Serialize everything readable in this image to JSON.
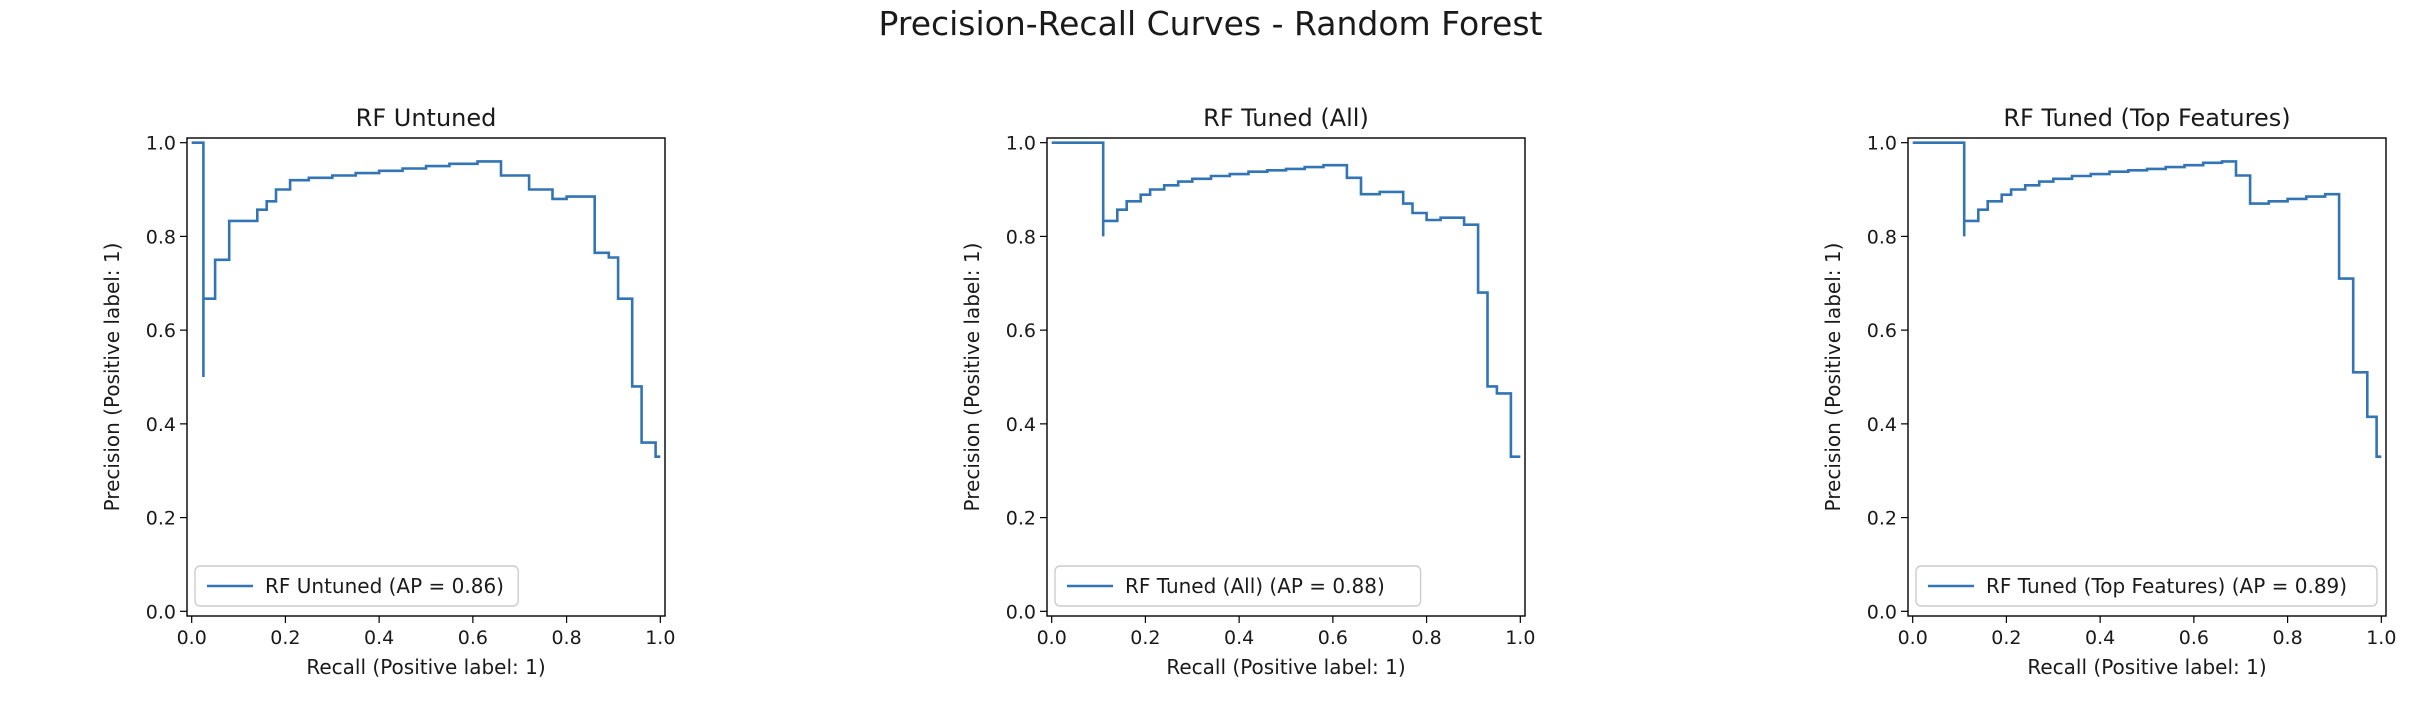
{
  "figure": {
    "title": "Precision-Recall Curves - Random Forest",
    "line_color": "#3274b4"
  },
  "chart_data": [
    {
      "type": "line",
      "step": "post",
      "title": "RF Untuned",
      "xlabel": "Recall (Positive label: 1)",
      "ylabel": "Precision (Positive label: 1)",
      "xlim": [
        0.0,
        1.0
      ],
      "ylim": [
        0.0,
        1.0
      ],
      "xticks": [
        "0.0",
        "0.2",
        "0.4",
        "0.6",
        "0.8",
        "1.0"
      ],
      "yticks": [
        "0.0",
        "0.2",
        "0.4",
        "0.6",
        "0.8",
        "1.0"
      ],
      "legend_position": "lower-left",
      "series": [
        {
          "name": "RF Untuned (AP = 0.86)",
          "x": [
            0.0,
            0.025,
            0.025,
            0.025,
            0.05,
            0.05,
            0.08,
            0.08,
            0.14,
            0.14,
            0.16,
            0.16,
            0.18,
            0.18,
            0.21,
            0.21,
            0.25,
            0.25,
            0.3,
            0.3,
            0.35,
            0.35,
            0.4,
            0.4,
            0.45,
            0.45,
            0.5,
            0.5,
            0.55,
            0.55,
            0.61,
            0.61,
            0.66,
            0.66,
            0.72,
            0.72,
            0.77,
            0.77,
            0.8,
            0.8,
            0.86,
            0.86,
            0.89,
            0.89,
            0.91,
            0.91,
            0.94,
            0.94,
            0.96,
            0.96,
            0.99,
            0.99,
            1.0
          ],
          "y": [
            1.0,
            1.0,
            0.5,
            0.667,
            0.667,
            0.75,
            0.75,
            0.833,
            0.833,
            0.857,
            0.857,
            0.875,
            0.875,
            0.9,
            0.9,
            0.92,
            0.92,
            0.925,
            0.925,
            0.93,
            0.93,
            0.935,
            0.935,
            0.94,
            0.94,
            0.945,
            0.945,
            0.95,
            0.95,
            0.955,
            0.955,
            0.96,
            0.96,
            0.93,
            0.93,
            0.9,
            0.9,
            0.88,
            0.88,
            0.885,
            0.885,
            0.765,
            0.765,
            0.755,
            0.755,
            0.667,
            0.667,
            0.48,
            0.48,
            0.36,
            0.36,
            0.33,
            0.33
          ]
        }
      ]
    },
    {
      "type": "line",
      "step": "post",
      "title": "RF Tuned (All)",
      "xlabel": "Recall (Positive label: 1)",
      "ylabel": "Precision (Positive label: 1)",
      "xlim": [
        0.0,
        1.0
      ],
      "ylim": [
        0.0,
        1.0
      ],
      "xticks": [
        "0.0",
        "0.2",
        "0.4",
        "0.6",
        "0.8",
        "1.0"
      ],
      "yticks": [
        "0.0",
        "0.2",
        "0.4",
        "0.6",
        "0.8",
        "1.0"
      ],
      "legend_position": "lower-left",
      "series": [
        {
          "name": "RF Tuned (All) (AP = 0.88)",
          "x": [
            0.0,
            0.11,
            0.11,
            0.11,
            0.14,
            0.14,
            0.16,
            0.16,
            0.19,
            0.19,
            0.21,
            0.21,
            0.24,
            0.24,
            0.27,
            0.27,
            0.3,
            0.3,
            0.34,
            0.34,
            0.38,
            0.38,
            0.42,
            0.42,
            0.46,
            0.46,
            0.5,
            0.5,
            0.54,
            0.54,
            0.58,
            0.58,
            0.63,
            0.63,
            0.66,
            0.66,
            0.7,
            0.7,
            0.75,
            0.75,
            0.77,
            0.77,
            0.8,
            0.8,
            0.83,
            0.83,
            0.88,
            0.88,
            0.91,
            0.91,
            0.93,
            0.93,
            0.95,
            0.95,
            0.98,
            0.98,
            1.0
          ],
          "y": [
            1.0,
            1.0,
            0.8,
            0.833,
            0.833,
            0.857,
            0.857,
            0.875,
            0.875,
            0.889,
            0.889,
            0.9,
            0.9,
            0.909,
            0.909,
            0.917,
            0.917,
            0.923,
            0.923,
            0.929,
            0.929,
            0.933,
            0.933,
            0.938,
            0.938,
            0.941,
            0.941,
            0.944,
            0.944,
            0.948,
            0.948,
            0.952,
            0.952,
            0.925,
            0.925,
            0.89,
            0.89,
            0.895,
            0.895,
            0.87,
            0.87,
            0.85,
            0.85,
            0.835,
            0.835,
            0.84,
            0.84,
            0.825,
            0.825,
            0.68,
            0.68,
            0.48,
            0.48,
            0.465,
            0.465,
            0.33,
            0.33
          ]
        }
      ]
    },
    {
      "type": "line",
      "step": "post",
      "title": "RF Tuned (Top Features)",
      "xlabel": "Recall (Positive label: 1)",
      "ylabel": "Precision (Positive label: 1)",
      "xlim": [
        0.0,
        1.0
      ],
      "ylim": [
        0.0,
        1.0
      ],
      "xticks": [
        "0.0",
        "0.2",
        "0.4",
        "0.6",
        "0.8",
        "1.0"
      ],
      "yticks": [
        "0.0",
        "0.2",
        "0.4",
        "0.6",
        "0.8",
        "1.0"
      ],
      "legend_position": "lower-left",
      "series": [
        {
          "name": "RF Tuned (Top Features) (AP = 0.89)",
          "x": [
            0.0,
            0.11,
            0.11,
            0.11,
            0.14,
            0.14,
            0.16,
            0.16,
            0.19,
            0.19,
            0.21,
            0.21,
            0.24,
            0.24,
            0.27,
            0.27,
            0.3,
            0.3,
            0.34,
            0.34,
            0.38,
            0.38,
            0.42,
            0.42,
            0.46,
            0.46,
            0.5,
            0.5,
            0.54,
            0.54,
            0.58,
            0.58,
            0.62,
            0.62,
            0.66,
            0.66,
            0.69,
            0.69,
            0.72,
            0.72,
            0.76,
            0.76,
            0.8,
            0.8,
            0.84,
            0.84,
            0.88,
            0.88,
            0.91,
            0.91,
            0.94,
            0.94,
            0.97,
            0.97,
            0.99,
            0.99,
            1.0
          ],
          "y": [
            1.0,
            1.0,
            0.8,
            0.833,
            0.833,
            0.857,
            0.857,
            0.875,
            0.875,
            0.889,
            0.889,
            0.9,
            0.9,
            0.909,
            0.909,
            0.917,
            0.917,
            0.923,
            0.923,
            0.929,
            0.929,
            0.933,
            0.933,
            0.938,
            0.938,
            0.941,
            0.941,
            0.944,
            0.944,
            0.948,
            0.948,
            0.952,
            0.952,
            0.957,
            0.957,
            0.96,
            0.96,
            0.93,
            0.93,
            0.87,
            0.87,
            0.875,
            0.875,
            0.88,
            0.88,
            0.885,
            0.885,
            0.89,
            0.89,
            0.71,
            0.71,
            0.51,
            0.51,
            0.415,
            0.415,
            0.33,
            0.33
          ]
        }
      ]
    }
  ]
}
